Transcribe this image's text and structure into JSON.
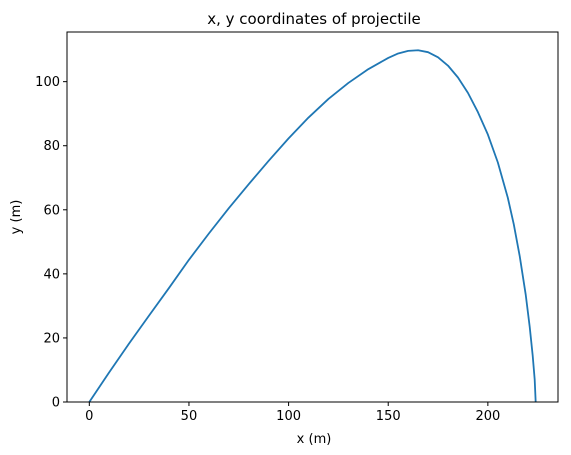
{
  "chart_data": {
    "type": "line",
    "title": "x, y coordinates of projectile",
    "xlabel": "x (m)",
    "ylabel": "y (m)",
    "xlim": [
      -11.2,
      235.2
    ],
    "ylim": [
      0,
      115.5
    ],
    "xticks": [
      0,
      50,
      100,
      150,
      200
    ],
    "yticks": [
      0,
      20,
      40,
      60,
      80,
      100
    ],
    "grid": false,
    "series": [
      {
        "color": "#1f77b4",
        "points": [
          [
            0,
            0
          ],
          [
            10,
            9.3
          ],
          [
            20,
            18.3
          ],
          [
            30,
            27
          ],
          [
            40,
            35.6
          ],
          [
            50,
            44.4
          ],
          [
            60,
            52.6
          ],
          [
            70,
            60.5
          ],
          [
            80,
            68.0
          ],
          [
            90,
            75.3
          ],
          [
            100,
            82.3
          ],
          [
            110,
            88.8
          ],
          [
            120,
            94.6
          ],
          [
            130,
            99.6
          ],
          [
            140,
            103.9
          ],
          [
            150,
            107.4
          ],
          [
            155,
            108.8
          ],
          [
            160,
            109.6
          ],
          [
            165,
            109.8
          ],
          [
            170,
            109.2
          ],
          [
            175,
            107.6
          ],
          [
            180,
            105.0
          ],
          [
            185,
            101.3
          ],
          [
            190,
            96.5
          ],
          [
            195,
            90.5
          ],
          [
            200,
            83.5
          ],
          [
            205,
            74.8
          ],
          [
            210,
            63.8
          ],
          [
            213,
            55.5
          ],
          [
            216,
            45.5
          ],
          [
            219,
            33.5
          ],
          [
            221,
            23.5
          ],
          [
            222.5,
            14.5
          ],
          [
            223.5,
            7.0
          ],
          [
            224,
            0
          ]
        ]
      }
    ]
  }
}
